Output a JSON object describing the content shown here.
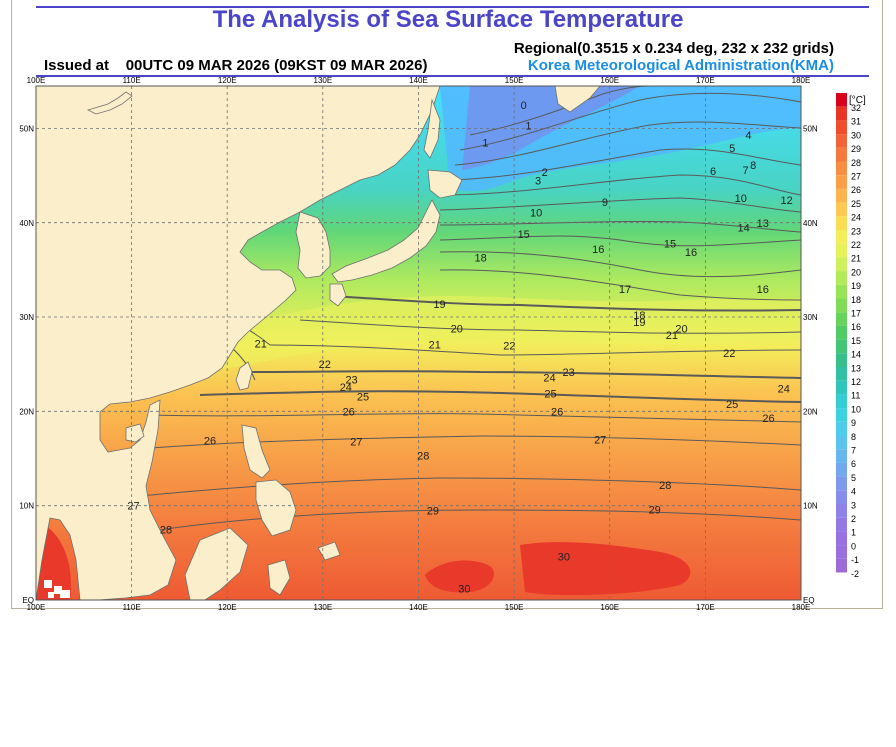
{
  "header": {
    "title": "The Analysis of Sea Surface Temperature",
    "issued": "Issued at    00UTC 09 MAR 2026 (09KST 09 MAR 2026)",
    "regional": "Regional(0.3515 x 0.234 deg, 232 x 232 grids)",
    "agency": "Korea Meteorological Administration(KMA)",
    "title_color": "#4a45c9",
    "agency_color": "#1a8ee6"
  },
  "map": {
    "lon_labels": [
      "100E",
      "110E",
      "120E",
      "130E",
      "140E",
      "150E",
      "160E",
      "170E",
      "180E"
    ],
    "lat_labels": [
      "EQ",
      "10N",
      "20N",
      "30N",
      "40N",
      "50N"
    ],
    "contour_labels": [
      {
        "text": "0",
        "lon": 151.0,
        "lat": 52.5
      },
      {
        "text": "1",
        "lon": 147.0,
        "lat": 48.5
      },
      {
        "text": "1",
        "lon": 151.5,
        "lat": 50.3
      },
      {
        "text": "2",
        "lon": 153.2,
        "lat": 45.4
      },
      {
        "text": "3",
        "lon": 152.5,
        "lat": 44.5
      },
      {
        "text": "4",
        "lon": 174.5,
        "lat": 49.3
      },
      {
        "text": "5",
        "lon": 172.8,
        "lat": 47.9
      },
      {
        "text": "6",
        "lon": 170.8,
        "lat": 45.5
      },
      {
        "text": "7",
        "lon": 174.2,
        "lat": 45.6
      },
      {
        "text": "8",
        "lon": 175.0,
        "lat": 46.1
      },
      {
        "text": "9",
        "lon": 159.5,
        "lat": 42.2
      },
      {
        "text": "10",
        "lon": 152.3,
        "lat": 41.1
      },
      {
        "text": "10",
        "lon": 173.7,
        "lat": 42.6
      },
      {
        "text": "12",
        "lon": 178.5,
        "lat": 42.4
      },
      {
        "text": "13",
        "lon": 176.0,
        "lat": 40.0
      },
      {
        "text": "14",
        "lon": 174.0,
        "lat": 39.5
      },
      {
        "text": "15",
        "lon": 151.0,
        "lat": 38.8
      },
      {
        "text": "15",
        "lon": 166.3,
        "lat": 37.8
      },
      {
        "text": "16",
        "lon": 168.5,
        "lat": 36.9
      },
      {
        "text": "16",
        "lon": 158.8,
        "lat": 37.2
      },
      {
        "text": "16",
        "lon": 176.0,
        "lat": 33.0
      },
      {
        "text": "17",
        "lon": 161.6,
        "lat": 33.0
      },
      {
        "text": "18",
        "lon": 146.5,
        "lat": 36.3
      },
      {
        "text": "18",
        "lon": 163.1,
        "lat": 30.2
      },
      {
        "text": "19",
        "lon": 142.2,
        "lat": 31.4
      },
      {
        "text": "19",
        "lon": 163.1,
        "lat": 29.5
      },
      {
        "text": "20",
        "lon": 144.0,
        "lat": 28.8
      },
      {
        "text": "20",
        "lon": 167.5,
        "lat": 28.8
      },
      {
        "text": "21",
        "lon": 141.7,
        "lat": 27.1
      },
      {
        "text": "21",
        "lon": 166.5,
        "lat": 28.1
      },
      {
        "text": "21",
        "lon": 123.5,
        "lat": 27.2
      },
      {
        "text": "22",
        "lon": 149.5,
        "lat": 27.0
      },
      {
        "text": "22",
        "lon": 130.2,
        "lat": 25.0
      },
      {
        "text": "22",
        "lon": 172.5,
        "lat": 26.2
      },
      {
        "text": "23",
        "lon": 133.0,
        "lat": 23.4
      },
      {
        "text": "23",
        "lon": 155.7,
        "lat": 24.2
      },
      {
        "text": "24",
        "lon": 132.4,
        "lat": 22.6
      },
      {
        "text": "24",
        "lon": 153.7,
        "lat": 23.6
      },
      {
        "text": "24",
        "lon": 178.2,
        "lat": 22.4
      },
      {
        "text": "25",
        "lon": 134.2,
        "lat": 21.6
      },
      {
        "text": "25",
        "lon": 153.8,
        "lat": 21.9
      },
      {
        "text": "25",
        "lon": 172.8,
        "lat": 20.8
      },
      {
        "text": "26",
        "lon": 132.7,
        "lat": 20.0
      },
      {
        "text": "26",
        "lon": 154.5,
        "lat": 20.0
      },
      {
        "text": "26",
        "lon": 176.6,
        "lat": 19.3
      },
      {
        "text": "26",
        "lon": 118.2,
        "lat": 16.9
      },
      {
        "text": "27",
        "lon": 133.5,
        "lat": 16.8
      },
      {
        "text": "27",
        "lon": 159.0,
        "lat": 17.0
      },
      {
        "text": "27",
        "lon": 110.2,
        "lat": 10.0
      },
      {
        "text": "28",
        "lon": 140.5,
        "lat": 15.3
      },
      {
        "text": "28",
        "lon": 165.8,
        "lat": 12.2
      },
      {
        "text": "28",
        "lon": 113.6,
        "lat": 7.5
      },
      {
        "text": "29",
        "lon": 141.5,
        "lat": 9.5
      },
      {
        "text": "29",
        "lon": 164.7,
        "lat": 9.6
      },
      {
        "text": "30",
        "lon": 155.2,
        "lat": 4.6
      },
      {
        "text": "30",
        "lon": 144.8,
        "lat": 1.2
      }
    ],
    "colors": {
      "land": "#fbefcb",
      "frame": "#b8b29a",
      "grid": "#707070",
      "contour": "#5a5a5a"
    }
  },
  "legend": {
    "unit": "[°C]",
    "ticks": [
      "32",
      "31",
      "30",
      "29",
      "28",
      "27",
      "26",
      "25",
      "24",
      "23",
      "22",
      "21",
      "20",
      "19",
      "18",
      "17",
      "16",
      "15",
      "14",
      "13",
      "12",
      "11",
      "10",
      "9",
      "8",
      "7",
      "6",
      "5",
      "4",
      "3",
      "2",
      "1",
      "0",
      "-1",
      "-2"
    ],
    "colors": [
      "#d9001b",
      "#e83425",
      "#ee4e2e",
      "#f16338",
      "#f47a3f",
      "#f78e44",
      "#fa9f4a",
      "#fcb44f",
      "#fdc952",
      "#fbdd55",
      "#f4ee5a",
      "#e5f25c",
      "#cdf05c",
      "#b3ea5a",
      "#98e358",
      "#7fdb58",
      "#68d35c",
      "#52cb66",
      "#43c476",
      "#38be8a",
      "#32c0a4",
      "#31c6bd",
      "#34cdd3",
      "#3dd1e2",
      "#4bcdeb",
      "#5ac3ee",
      "#67b6ee",
      "#73a8ee",
      "#7e9aed",
      "#878deb",
      "#8e82e8",
      "#9479e4",
      "#9872e0",
      "#9a6edc",
      "#9d6bd8"
    ]
  }
}
